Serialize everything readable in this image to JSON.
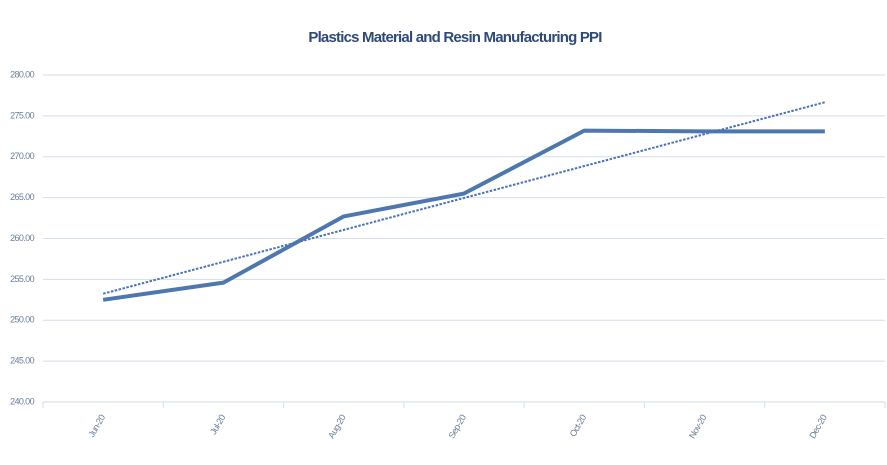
{
  "chart_data": {
    "type": "line",
    "title": "Plastics Material and Resin Manufacturing PPI",
    "categories": [
      "Jun-20",
      "Jul-20",
      "Aug-20",
      "Sep-20",
      "Oct-20",
      "Nov-20",
      "Dec-20"
    ],
    "series": [
      {
        "name": "PPI",
        "color": "#4e77ad",
        "values": [
          252.5,
          254.6,
          262.7,
          265.5,
          273.2,
          273.1,
          273.1
        ]
      }
    ],
    "trendline": "linear",
    "trendline_color": "#4a72b4",
    "ylim": [
      240,
      280
    ],
    "yticks": [
      {
        "value": 240,
        "label": "240.00"
      },
      {
        "value": 245,
        "label": "245.00"
      },
      {
        "value": 250,
        "label": "250.00"
      },
      {
        "value": 255,
        "label": "255.00"
      },
      {
        "value": 260,
        "label": "260.00"
      },
      {
        "value": 265,
        "label": "265.00"
      },
      {
        "value": 270,
        "label": "270.00"
      },
      {
        "value": 275,
        "label": "275.00"
      },
      {
        "value": 280,
        "label": "280.00"
      }
    ],
    "grid": true
  }
}
